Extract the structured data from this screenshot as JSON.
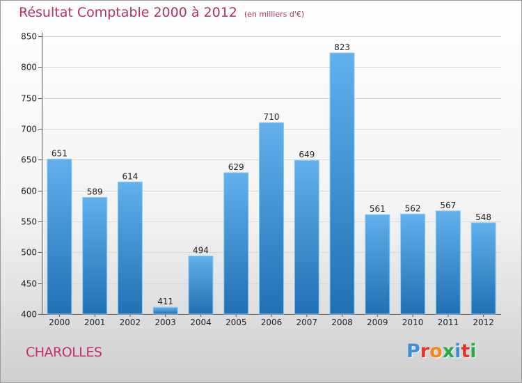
{
  "header": {
    "title": "Résultat Comptable 2000 à 2012",
    "unit": "(en milliers d'€)"
  },
  "footer": {
    "city": "CHAROLLES",
    "logo": "Proxiti",
    "logo_colors": [
      "#3c8fd6",
      "#e8352b",
      "#f08c1e",
      "#2aa84a",
      "#3c8fd6",
      "#e8352b",
      "#2aa84a"
    ]
  },
  "colors": {
    "bar_top": "#62b0ec",
    "bar_bottom": "#2070b4",
    "title": "#b0306a"
  },
  "chart_data": {
    "type": "bar",
    "categories": [
      "2000",
      "2001",
      "2002",
      "2003",
      "2004",
      "2005",
      "2006",
      "2007",
      "2008",
      "2009",
      "2010",
      "2011",
      "2012"
    ],
    "values": [
      651,
      589,
      614,
      411,
      494,
      629,
      710,
      649,
      823,
      561,
      562,
      567,
      548
    ],
    "ylim": [
      400,
      850
    ],
    "yticks": [
      400,
      450,
      500,
      550,
      600,
      650,
      700,
      750,
      800,
      850
    ],
    "grid": true
  }
}
